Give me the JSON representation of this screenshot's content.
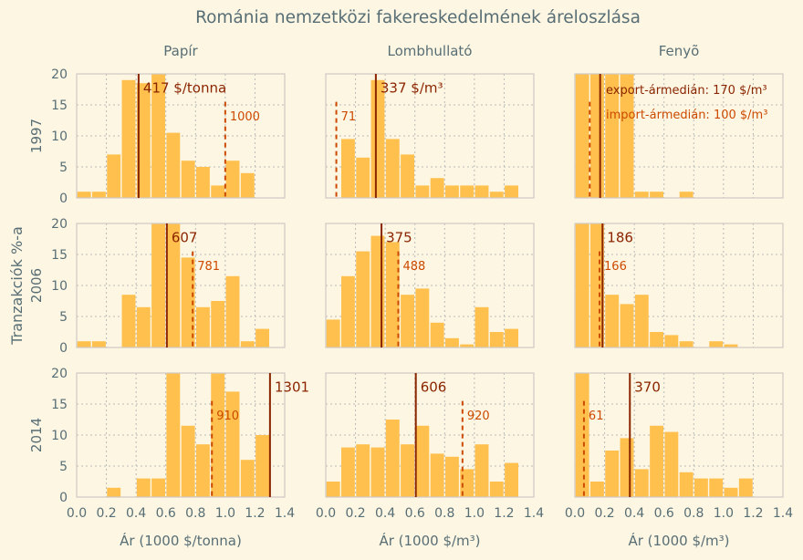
{
  "title": "Románia nemzetközi fakereskedelmének áreloszlása",
  "ylabel_common": "Tranzakciók %-a",
  "colors": {
    "background": "#fdf6e3",
    "bar": "#ffc04d",
    "grid": "#b9b9b9",
    "axis": "#cfc9c4",
    "text": "#586e75",
    "export_median": "#8b2500",
    "import_median": "#cc4a00"
  },
  "col_titles": [
    "Papír",
    "Lombhullató",
    "Fenyõ"
  ],
  "row_labels": [
    "1997",
    "2006",
    "2014"
  ],
  "x_labels": [
    "Ár (1000 $/tonna)",
    "Ár (1000 $/m³)",
    "Ár (1000 $/m³)"
  ],
  "x_ticks": [
    "0.0",
    "0.2",
    "0.4",
    "0.6",
    "0.8",
    "1.0",
    "1.2",
    "1.4"
  ],
  "y_ticks": [
    "0",
    "5",
    "10",
    "15",
    "20"
  ],
  "legend": {
    "export": "export-ármedián: 170 $/m³",
    "import": "import-ármedián: 100 $/m³"
  },
  "chart_data": {
    "type": "bar",
    "subtype": "histogram-grid",
    "xlim": [
      0,
      1.4
    ],
    "ylim": [
      0,
      20
    ],
    "bin_width": 0.1,
    "bin_starts": [
      0.0,
      0.1,
      0.2,
      0.3,
      0.4,
      0.5,
      0.6,
      0.7,
      0.8,
      0.9,
      1.0,
      1.1,
      1.2,
      1.3
    ],
    "grid": true,
    "panels": [
      {
        "row": 0,
        "col": 0,
        "product": "Papír",
        "year": "1997",
        "values": [
          1.0,
          1.0,
          7.0,
          19.0,
          18.5,
          20.0,
          10.5,
          6.0,
          5.0,
          2.0,
          6.0,
          4.0,
          0,
          0
        ],
        "export_median": 0.417,
        "export_label": "417 $/tonna",
        "import_median": 1.0,
        "import_label": "1000"
      },
      {
        "row": 0,
        "col": 1,
        "product": "Lombhullató",
        "year": "1997",
        "values": [
          0,
          9.5,
          6.5,
          19.0,
          9.5,
          7.0,
          2.0,
          3.2,
          2.0,
          2.0,
          2.0,
          1.0,
          2.0,
          0
        ],
        "export_median": 0.337,
        "export_label": "337 $/m³",
        "import_median": 0.071,
        "import_label": "71"
      },
      {
        "row": 0,
        "col": 2,
        "product": "Fenyõ",
        "year": "1997",
        "values": [
          20.0,
          20.0,
          20.0,
          20.0,
          1.0,
          1.0,
          0,
          1.0,
          0,
          0,
          0,
          0,
          0,
          0
        ],
        "export_median": 0.17,
        "export_label": "",
        "import_median": 0.1,
        "import_label": ""
      },
      {
        "row": 1,
        "col": 0,
        "product": "Papír",
        "year": "2006",
        "values": [
          1.0,
          1.0,
          0,
          8.5,
          6.5,
          20.0,
          20.0,
          14.5,
          6.5,
          7.5,
          11.5,
          1.0,
          3.0,
          0
        ],
        "export_median": 0.607,
        "export_label": "607",
        "import_median": 0.781,
        "import_label": "781"
      },
      {
        "row": 1,
        "col": 1,
        "product": "Lombhullató",
        "year": "2006",
        "values": [
          4.5,
          11.5,
          15.5,
          18.0,
          17.0,
          8.5,
          9.5,
          4.0,
          1.5,
          0.5,
          6.5,
          2.5,
          3.0,
          0
        ],
        "export_median": 0.375,
        "export_label": "375",
        "import_median": 0.488,
        "import_label": "488"
      },
      {
        "row": 1,
        "col": 2,
        "product": "Fenyõ",
        "year": "2006",
        "values": [
          20.0,
          20.0,
          8.5,
          7.0,
          8.5,
          2.5,
          2.0,
          1.0,
          0,
          1.0,
          0.5,
          0,
          0,
          0
        ],
        "export_median": 0.186,
        "export_label": "186",
        "import_median": 0.166,
        "import_label": "166"
      },
      {
        "row": 2,
        "col": 0,
        "product": "Papír",
        "year": "2014",
        "values": [
          0,
          0,
          1.5,
          0,
          3.0,
          3.0,
          20.0,
          11.5,
          8.5,
          20.0,
          17.0,
          6.0,
          10.0,
          0
        ],
        "export_median": 1.301,
        "export_label": "1301",
        "import_median": 0.91,
        "import_label": "910"
      },
      {
        "row": 2,
        "col": 1,
        "product": "Lombhullató",
        "year": "2014",
        "values": [
          2.5,
          8.0,
          8.5,
          8.0,
          12.5,
          8.5,
          11.5,
          7.0,
          6.5,
          4.5,
          8.5,
          2.5,
          5.5,
          0
        ],
        "export_median": 0.606,
        "export_label": "606",
        "import_median": 0.92,
        "import_label": "920"
      },
      {
        "row": 2,
        "col": 2,
        "product": "Fenyõ",
        "year": "2014",
        "values": [
          20.0,
          2.5,
          7.5,
          9.5,
          4.5,
          11.5,
          10.5,
          4.0,
          3.0,
          3.0,
          1.5,
          3.0,
          0,
          0
        ],
        "export_median": 0.37,
        "export_label": "370",
        "import_median": 0.061,
        "import_label": "61"
      }
    ]
  }
}
